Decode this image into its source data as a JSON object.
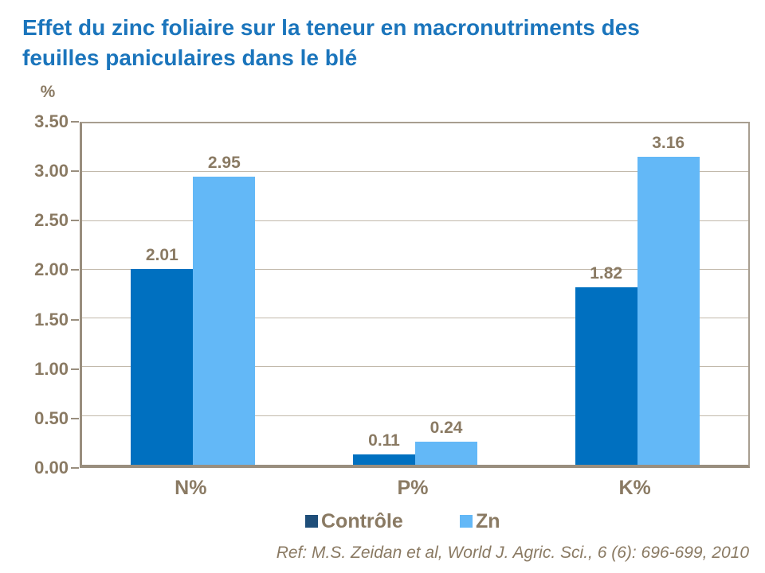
{
  "title": {
    "line1": "Effet du zinc foliaire sur la teneur en macronutriments des",
    "line2": "feuilles paniculaires dans le blé"
  },
  "colors": {
    "title_text": "#1B75BC",
    "axis_text": "#8A7A63",
    "plot_border": "#A89E90",
    "axis_line": "#998E7E",
    "gridline": "#C2B9AB",
    "controle_bar": "#0070C0",
    "zn_bar": "#63B8F7",
    "controle_legend_swatch": "#1F4E79",
    "zn_legend_swatch": "#63B8F7"
  },
  "chart_data": {
    "type": "bar",
    "title": "Effet du zinc foliaire sur la teneur en macronutriments des feuilles paniculaires dans le blé",
    "categories": [
      "N%",
      "P%",
      "K%"
    ],
    "series": [
      {
        "name": "Contrôle",
        "values": [
          2.01,
          0.11,
          1.82
        ],
        "color": "#0070C0",
        "legend_color": "#1F4E79",
        "data_labels": [
          "2.01",
          "0.11",
          "1.82"
        ]
      },
      {
        "name": "Zn",
        "values": [
          2.95,
          0.24,
          3.16
        ],
        "color": "#63B8F7",
        "legend_color": "#63B8F7",
        "data_labels": [
          "2.95",
          "0.24",
          "3.16"
        ]
      }
    ],
    "xlabel": "",
    "ylabel": "%",
    "ylim": [
      0,
      3.5
    ],
    "ytick_step": 0.5,
    "ytick_labels": [
      "3.50",
      "3.00",
      "2.50",
      "2.00",
      "1.50",
      "1.00",
      "0.50",
      "0.00"
    ],
    "grid": "horizontal",
    "legend_position": "bottom",
    "data_labels_shown": true
  },
  "footer": {
    "reference": "Ref: M.S. Zeidan et al, World J. Agric. Sci., 6 (6): 696-699, 2010"
  }
}
